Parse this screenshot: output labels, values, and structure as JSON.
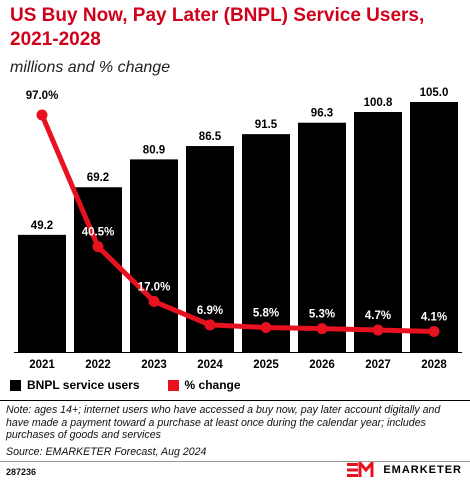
{
  "header": {
    "title": "US Buy Now, Pay Later (BNPL) Service Users, 2021-2028",
    "subtitle": "millions and % change"
  },
  "chart_data": {
    "type": "bar",
    "categories": [
      "2021",
      "2022",
      "2023",
      "2024",
      "2025",
      "2026",
      "2027",
      "2028"
    ],
    "series": [
      {
        "name": "BNPL service users",
        "type": "bar",
        "color": "#000000",
        "values": [
          49.2,
          69.2,
          80.9,
          86.5,
          91.5,
          96.3,
          100.8,
          105.0
        ],
        "labels": [
          "49.2",
          "69.2",
          "80.9",
          "86.5",
          "91.5",
          "96.3",
          "100.8",
          "105.0"
        ]
      },
      {
        "name": "% change",
        "type": "line",
        "color": "#e8111f",
        "values": [
          97.0,
          40.5,
          17.0,
          6.9,
          5.8,
          5.3,
          4.7,
          4.1
        ],
        "labels": [
          "97.0%",
          "40.5%",
          "17.0%",
          "6.9%",
          "5.8%",
          "5.3%",
          "4.7%",
          "4.1%"
        ]
      }
    ],
    "legend": "bottom-left",
    "grid": false
  },
  "legend": {
    "bar_label": "BNPL service users",
    "line_label": "% change"
  },
  "footer": {
    "note": "Note: ages 14+; internet users who have accessed a buy now, pay later account digitally and have made a payment toward a purchase at least once during the calendar year; includes purchases of goods and services",
    "source": "Source: EMARKETER Forecast, Aug 2024",
    "chart_id": "287236",
    "brand": "EMARKETER"
  }
}
